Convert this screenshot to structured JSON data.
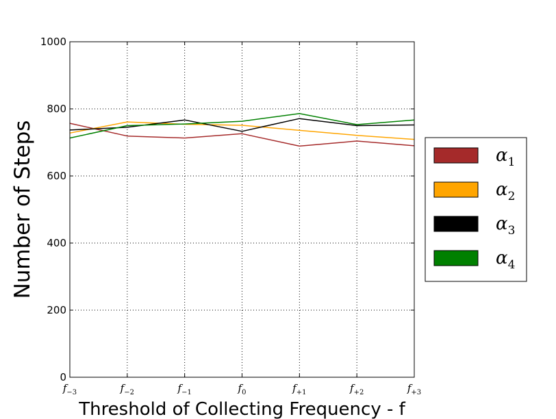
{
  "chart_data": {
    "type": "line",
    "title": "",
    "xlabel": "Threshold of Collecting Frequency - f",
    "ylabel": "Number of Steps",
    "categories": [
      {
        "base": "f",
        "sub": "−3"
      },
      {
        "base": "f",
        "sub": "−2"
      },
      {
        "base": "f",
        "sub": "−1"
      },
      {
        "base": "f",
        "sub": "0"
      },
      {
        "base": "f",
        "sub": "+1"
      },
      {
        "base": "f",
        "sub": "+2"
      },
      {
        "base": "f",
        "sub": "+3"
      }
    ],
    "ylim": [
      0,
      1000
    ],
    "yticks": [
      "0",
      "200",
      "400",
      "600",
      "800",
      "1000"
    ],
    "grid": true,
    "legend_position": "right",
    "series": [
      {
        "name": {
          "base": "α",
          "sub": "1"
        },
        "color": "#a52a2a",
        "values": [
          757,
          719,
          713,
          726,
          689,
          704,
          690
        ]
      },
      {
        "name": {
          "base": "α",
          "sub": "2"
        },
        "color": "#ffa500",
        "values": [
          728,
          761,
          754,
          751,
          736,
          721,
          709
        ]
      },
      {
        "name": {
          "base": "α",
          "sub": "3"
        },
        "color": "#000000",
        "values": [
          737,
          745,
          767,
          733,
          771,
          750,
          752
        ]
      },
      {
        "name": {
          "base": "α",
          "sub": "4"
        },
        "color": "#008000",
        "values": [
          713,
          750,
          755,
          763,
          786,
          753,
          767
        ]
      }
    ]
  }
}
